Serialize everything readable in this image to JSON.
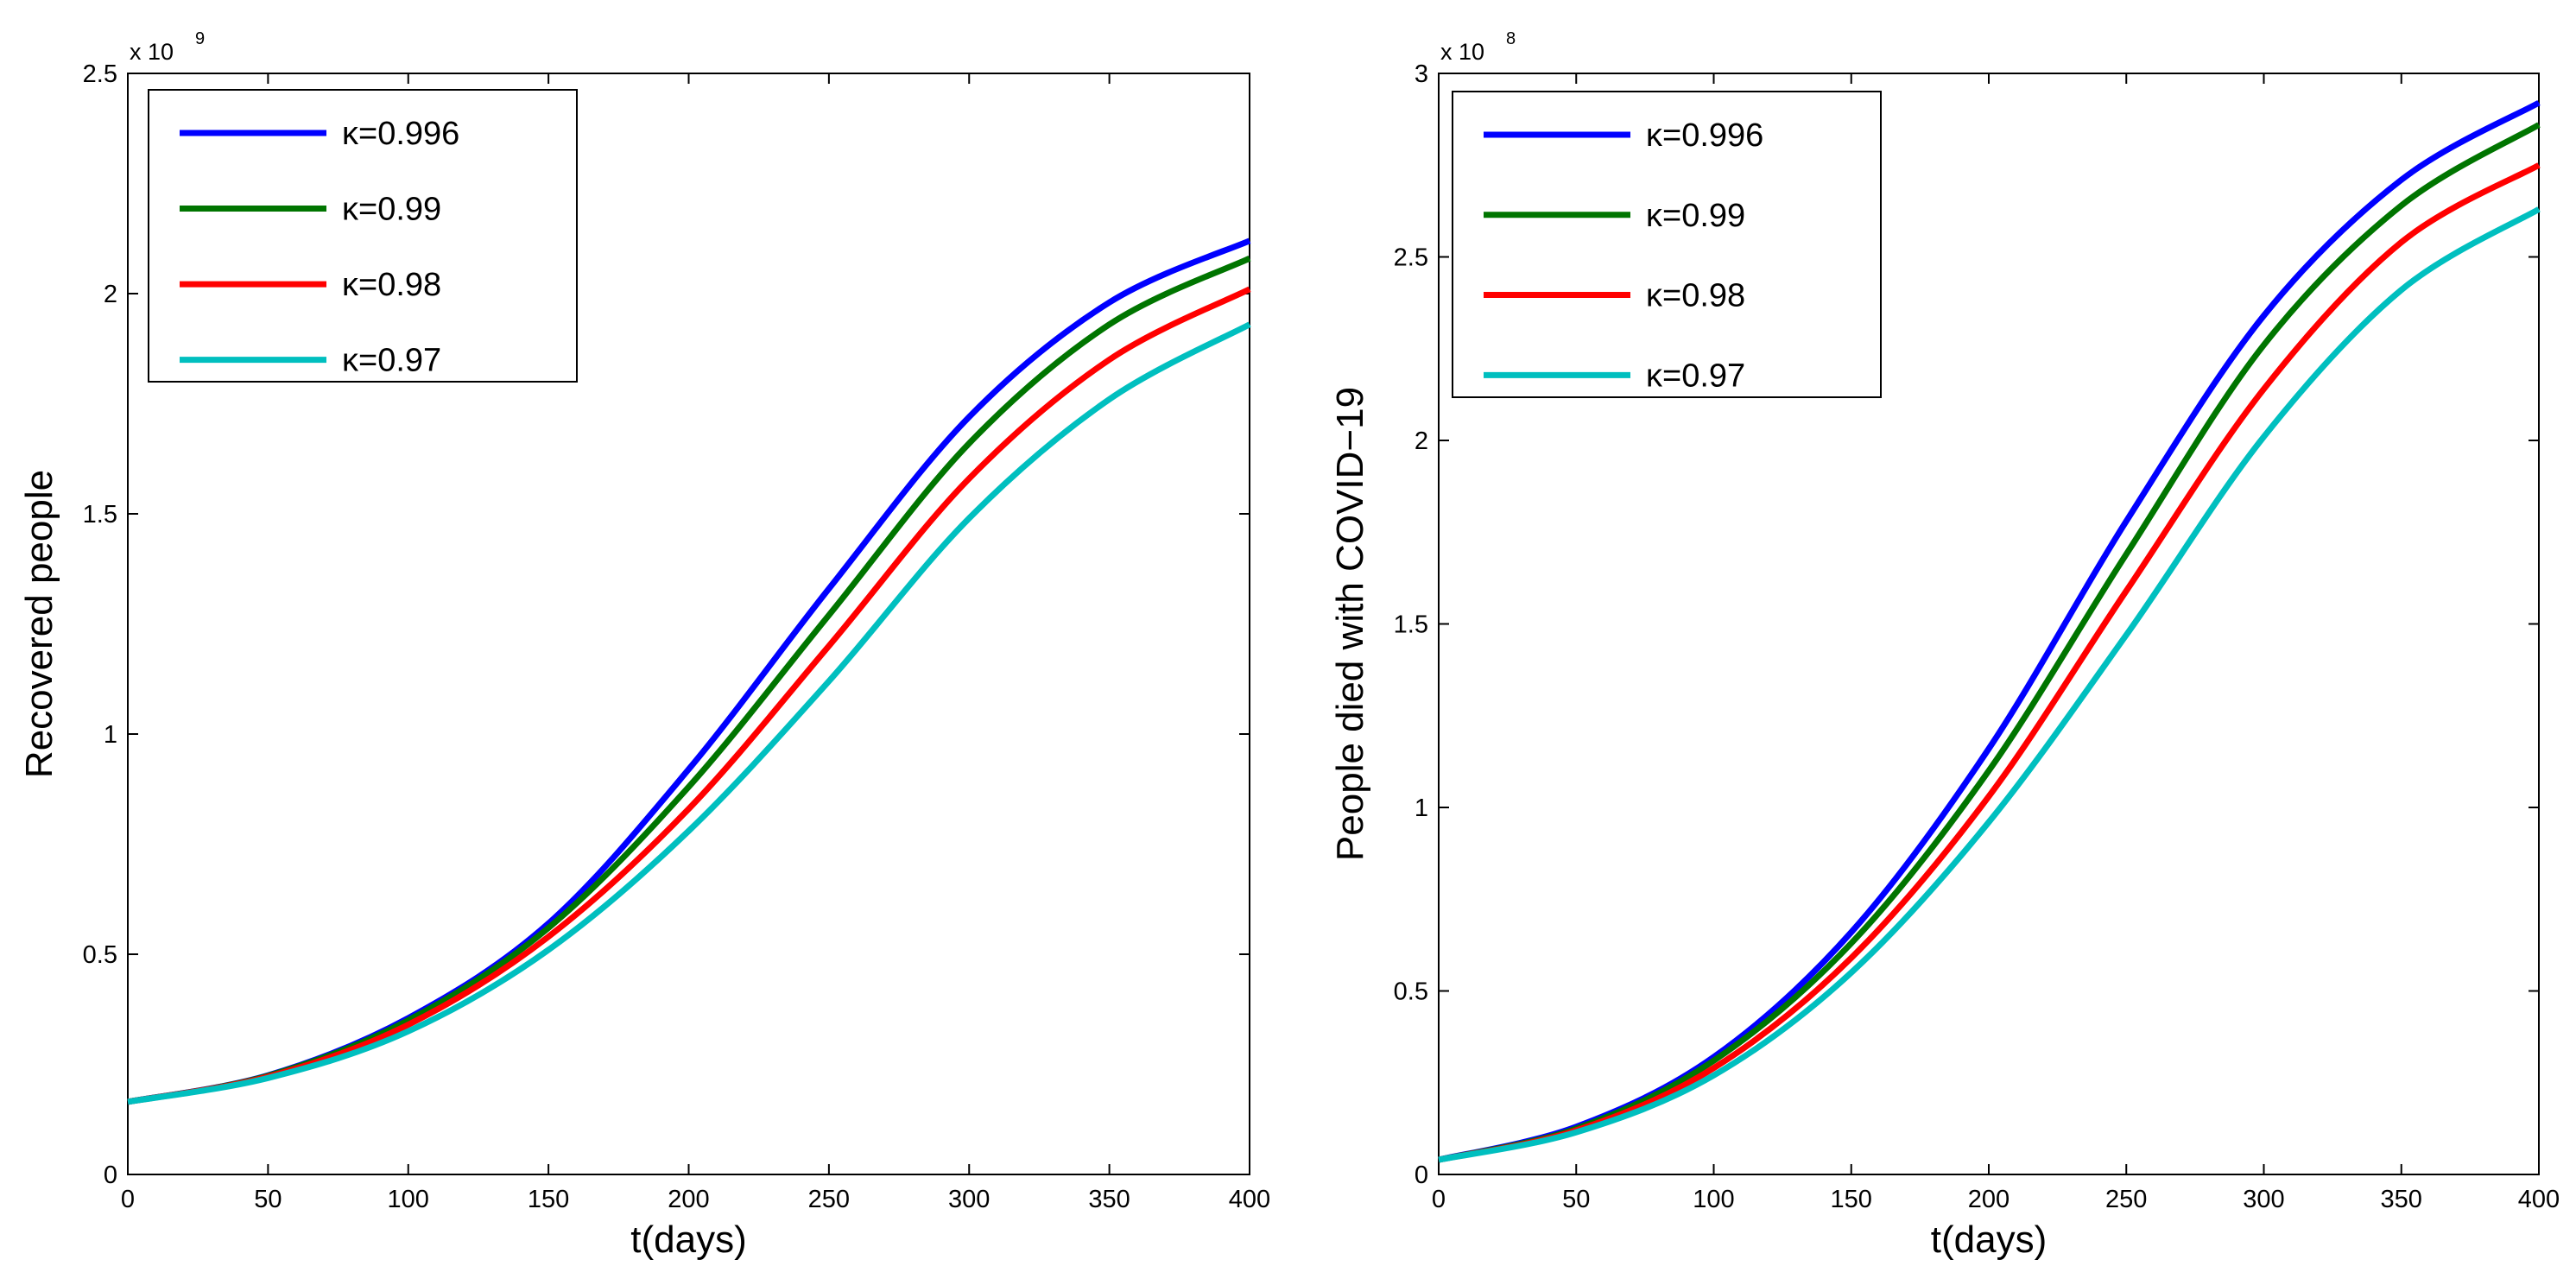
{
  "chart_data": [
    {
      "type": "line",
      "xlabel": "t(days)",
      "ylabel": "Recovered people",
      "xlim": [
        0,
        400
      ],
      "ylim": [
        0,
        2.5
      ],
      "y_multiplier": {
        "base": "x 10",
        "exponent": "9"
      },
      "x_ticks": [
        "0",
        "50",
        "100",
        "150",
        "200",
        "250",
        "300",
        "350",
        "400"
      ],
      "y_ticks": [
        "0",
        "0.5",
        "1",
        "1.5",
        "2",
        "2.5"
      ],
      "legend_location": "top-left",
      "x": [
        0,
        50,
        100,
        150,
        200,
        250,
        300,
        350,
        400
      ],
      "series": [
        {
          "name": "κ=0.996",
          "color": "#0000ff",
          "values": [
            0.165,
            0.225,
            0.355,
            0.57,
            0.92,
            1.33,
            1.72,
            1.98,
            2.12
          ]
        },
        {
          "name": "κ=0.99",
          "color": "#007500",
          "values": [
            0.165,
            0.224,
            0.35,
            0.56,
            0.88,
            1.27,
            1.66,
            1.93,
            2.08
          ]
        },
        {
          "name": "κ=0.98",
          "color": "#ff0000",
          "values": [
            0.165,
            0.222,
            0.34,
            0.54,
            0.83,
            1.2,
            1.58,
            1.85,
            2.01
          ]
        },
        {
          "name": "κ=0.97",
          "color": "#00bfbf",
          "values": [
            0.165,
            0.219,
            0.325,
            0.51,
            0.78,
            1.12,
            1.49,
            1.76,
            1.93
          ]
        }
      ]
    },
    {
      "type": "line",
      "xlabel": "t(days)",
      "ylabel": "People died with COVID−19",
      "xlim": [
        0,
        400
      ],
      "ylim": [
        0,
        3
      ],
      "y_multiplier": {
        "base": "x 10",
        "exponent": "8"
      },
      "x_ticks": [
        "0",
        "50",
        "100",
        "150",
        "200",
        "250",
        "300",
        "350",
        "400"
      ],
      "y_ticks": [
        "0",
        "0.5",
        "1",
        "1.5",
        "2",
        "2.5",
        "3"
      ],
      "legend_location": "top-left",
      "x": [
        0,
        50,
        100,
        150,
        200,
        250,
        300,
        350,
        400
      ],
      "series": [
        {
          "name": "κ=0.996",
          "color": "#0000ff",
          "values": [
            0.04,
            0.13,
            0.32,
            0.66,
            1.16,
            1.78,
            2.34,
            2.71,
            2.92
          ]
        },
        {
          "name": "κ=0.99",
          "color": "#007500",
          "values": [
            0.04,
            0.125,
            0.31,
            0.63,
            1.1,
            1.69,
            2.26,
            2.64,
            2.86
          ]
        },
        {
          "name": "κ=0.98",
          "color": "#ff0000",
          "values": [
            0.04,
            0.12,
            0.29,
            0.59,
            1.03,
            1.59,
            2.14,
            2.54,
            2.75
          ]
        },
        {
          "name": "κ=0.97",
          "color": "#00bfbf",
          "values": [
            0.04,
            0.115,
            0.27,
            0.55,
            0.96,
            1.47,
            2.01,
            2.41,
            2.63
          ]
        }
      ]
    }
  ]
}
